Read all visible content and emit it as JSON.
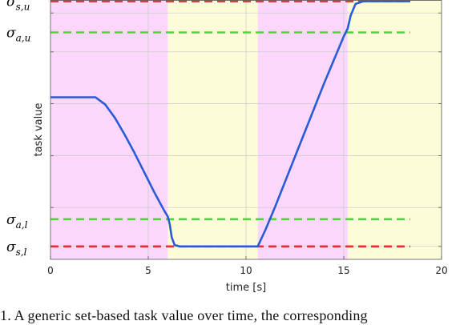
{
  "chart_data": {
    "type": "line",
    "title": "",
    "xlabel": "time [s]",
    "ylabel": "task value",
    "xlim": [
      0,
      20
    ],
    "ylim": [
      0,
      1
    ],
    "xticks": [
      0,
      5,
      10,
      15,
      20
    ],
    "yticks": [
      0.05,
      0.2,
      0.4,
      0.6,
      0.8,
      0.95
    ],
    "grid": true,
    "shaded_regions": [
      {
        "x0": 0,
        "x1": 6.0,
        "color": "#fcd7fc"
      },
      {
        "x0": 6.0,
        "x1": 10.6,
        "color": "#fcfcd9"
      },
      {
        "x0": 10.6,
        "x1": 15.2,
        "color": "#fcd7fc"
      },
      {
        "x0": 15.2,
        "x1": 20,
        "color": "#fcfcd9"
      }
    ],
    "thresholds": [
      {
        "name": "s,u",
        "symbol": "σ",
        "value": 0.995,
        "color": "#e8302e"
      },
      {
        "name": "a,u",
        "symbol": "σ",
        "value": 0.875,
        "color": "#4cd937"
      },
      {
        "name": "a,l",
        "symbol": "σ",
        "value": 0.155,
        "color": "#4cd937"
      },
      {
        "name": "s,l",
        "symbol": "σ",
        "value": 0.05,
        "color": "#e8302e"
      }
    ],
    "threshold_xrange": [
      0,
      18.4
    ],
    "series": [
      {
        "color": "#2a5bd7",
        "x": [
          0,
          1.0,
          2.3,
          2.8,
          3.3,
          3.8,
          4.3,
          4.8,
          5.3,
          5.8,
          6.0,
          6.1,
          6.2,
          6.35,
          6.6,
          7.0,
          8.0,
          9.0,
          10.0,
          10.6,
          11.0,
          11.5,
          12.0,
          12.5,
          13.0,
          13.5,
          14.0,
          14.5,
          15.0,
          15.2,
          15.35,
          15.6,
          16.0,
          17.0,
          18.4
        ],
        "y": [
          0.625,
          0.625,
          0.625,
          0.597,
          0.545,
          0.48,
          0.41,
          0.335,
          0.26,
          0.19,
          0.165,
          0.135,
          0.085,
          0.055,
          0.05,
          0.05,
          0.05,
          0.05,
          0.05,
          0.05,
          0.115,
          0.205,
          0.3,
          0.395,
          0.49,
          0.585,
          0.68,
          0.77,
          0.86,
          0.89,
          0.94,
          0.985,
          0.995,
          0.995,
          0.995
        ]
      }
    ]
  },
  "caption": "1.    A generic set-based task value over time, the corresponding"
}
